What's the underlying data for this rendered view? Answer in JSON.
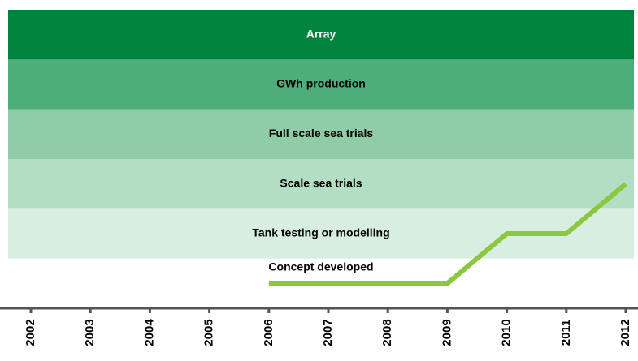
{
  "chart_data": {
    "type": "line",
    "x": [
      "2002",
      "2003",
      "2004",
      "2005",
      "2006",
      "2007",
      "2008",
      "2009",
      "2010",
      "2011",
      "2012"
    ],
    "y_categories": [
      "Concept developed",
      "Tank testing or modelling",
      "Scale sea trials",
      "Full scale sea trials",
      "GWh production",
      "Array"
    ],
    "band_colors": [
      "#ffffff",
      "#d7eee1",
      "#b3dec4",
      "#8fcca7",
      "#4dae7b",
      "#00843d"
    ],
    "series": [
      {
        "color": "#8dc63f",
        "values": [
          null,
          null,
          null,
          null,
          0,
          0,
          0,
          0,
          1,
          1,
          2
        ]
      }
    ]
  }
}
